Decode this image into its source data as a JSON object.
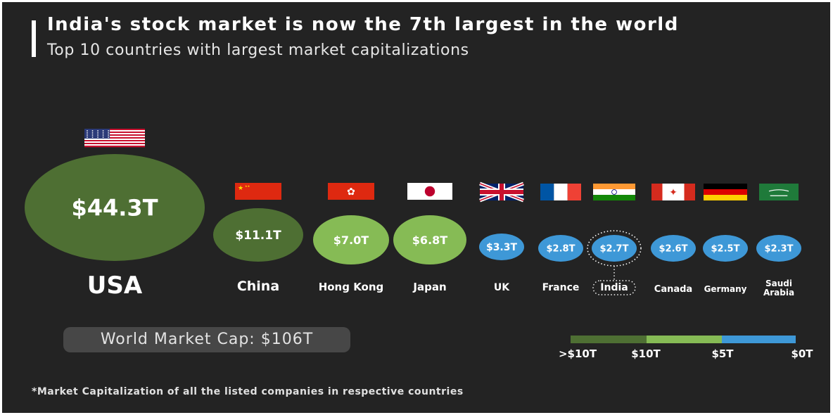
{
  "title": "India's stock market is now the 7th largest in the world",
  "subtitle": "Top 10 countries with largest market capitalizations",
  "world_market_cap": "World Market Cap: $106T",
  "footnote": "*Market Capitalization of all the listed companies in respective countries",
  "colors": {
    "background": "#232323",
    "over_10T": "#4e6f33",
    "5T_to_10T": "#86bb55",
    "under_5T": "#3e98d7",
    "text": "#ffffff"
  },
  "chart_data": {
    "type": "bubble",
    "title": "India's stock market is now the 7th largest in the world",
    "subtitle": "Top 10 countries with largest market capitalizations",
    "unit": "$T",
    "highlight": "India",
    "points": [
      {
        "country": "USA",
        "label": "USA",
        "value": 44.3,
        "value_label": "$44.3T",
        "flag": "usa-flag"
      },
      {
        "country": "China",
        "label": "China",
        "value": 11.1,
        "value_label": "$11.1T",
        "flag": "china-flag"
      },
      {
        "country": "Hong Kong",
        "label": "Hong Kong",
        "value": 7.0,
        "value_label": "$7.0T",
        "flag": "hong-kong-flag"
      },
      {
        "country": "Japan",
        "label": "Japan",
        "value": 6.8,
        "value_label": "$6.8T",
        "flag": "japan-flag"
      },
      {
        "country": "UK",
        "label": "UK",
        "value": 3.3,
        "value_label": "$3.3T",
        "flag": "uk-flag"
      },
      {
        "country": "France",
        "label": "France",
        "value": 2.8,
        "value_label": "$2.8T",
        "flag": "france-flag"
      },
      {
        "country": "India",
        "label": "India",
        "value": 2.7,
        "value_label": "$2.7T",
        "flag": "india-flag"
      },
      {
        "country": "Canada",
        "label": "Canada",
        "value": 2.6,
        "value_label": "$2.6T",
        "flag": "canada-flag"
      },
      {
        "country": "Germany",
        "label": "Germany",
        "value": 2.5,
        "value_label": "$2.5T",
        "flag": "germany-flag"
      },
      {
        "country": "Saudi Arabia",
        "label": "Saudi Arabia",
        "value": 2.3,
        "value_label": "$2.3T",
        "flag": "saudi-arabia-flag"
      }
    ],
    "color_scale": {
      "labels": [
        ">$10T",
        "$10T",
        "$5T",
        "$0T"
      ],
      "bands": [
        {
          "range": "> $10T",
          "color": "#4e6f33"
        },
        {
          "range": "$5T - $10T",
          "color": "#86bb55"
        },
        {
          "range": "$0T - $5T",
          "color": "#3e98d7"
        }
      ]
    }
  }
}
